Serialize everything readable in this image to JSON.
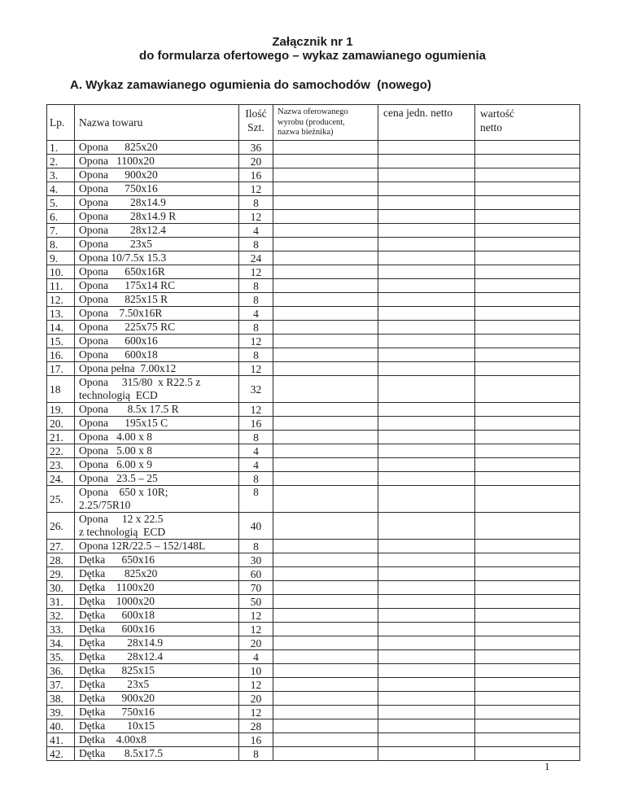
{
  "page": {
    "title": "Załącznik nr 1\ndo formularza ofertowego – wykaz zamawianego ogumienia",
    "section_heading": "A. Wykaz zamawianego ogumienia do samochodów  (nowego)",
    "page_number": "1"
  },
  "table": {
    "headers": {
      "lp": "Lp.",
      "name": "Nazwa towaru",
      "qty": "Ilość\nSzt.",
      "offered": "Nazwa oferowanego\nwyrobu (producent,\nnazwa bieżnika)",
      "unit_price": "cena jedn. netto",
      "value": "wartość\nnetto"
    },
    "rows": [
      {
        "lp": "1.",
        "name": "Opona      825x20",
        "qty": "36"
      },
      {
        "lp": "2.",
        "name": "Opona   1100x20",
        "qty": "20"
      },
      {
        "lp": "3.",
        "name": "Opona      900x20",
        "qty": "16"
      },
      {
        "lp": "4.",
        "name": "Opona      750x16",
        "qty": "12"
      },
      {
        "lp": "5.",
        "name": "Opona        28x14.9",
        "qty": "8"
      },
      {
        "lp": "6.",
        "name": "Opona        28x14.9 R",
        "qty": "12"
      },
      {
        "lp": "7.",
        "name": "Opona        28x12.4",
        "qty": "4"
      },
      {
        "lp": "8.",
        "name": "Opona        23x5",
        "qty": "8"
      },
      {
        "lp": "9.",
        "name": "Opona 10/7.5x 15.3",
        "qty": "24"
      },
      {
        "lp": "10.",
        "name": "Opona      650x16R",
        "qty": "12"
      },
      {
        "lp": "11.",
        "name": "Opona      175x14 RC",
        "qty": "8"
      },
      {
        "lp": "12.",
        "name": "Opona      825x15 R",
        "qty": "8"
      },
      {
        "lp": "13.",
        "name": "Opona    7.50x16R",
        "qty": "4"
      },
      {
        "lp": "14.",
        "name": "Opona      225x75 RC",
        "qty": "8"
      },
      {
        "lp": "15.",
        "name": "Opona      600x16",
        "qty": "12"
      },
      {
        "lp": "16.",
        "name": "Opona      600x18",
        "qty": "8"
      },
      {
        "lp": "17.",
        "name": "Opona pełna  7.00x12",
        "qty": "12"
      },
      {
        "lp": "18",
        "name": "Opona     315/80  x R22.5 z\ntechnologią  ECD",
        "qty": "32"
      },
      {
        "lp": "19.",
        "name": "Opona       8.5x 17.5 R",
        "qty": "12"
      },
      {
        "lp": "20.",
        "name": "Opona      195x15 C",
        "qty": "16"
      },
      {
        "lp": "21.",
        "name": "Opona   4.00 x 8",
        "qty": "8"
      },
      {
        "lp": "22.",
        "name": "Opona   5.00 x 8",
        "qty": "4"
      },
      {
        "lp": "23.",
        "name": "Opona   6.00 x 9",
        "qty": "4"
      },
      {
        "lp": "24.",
        "name": "Opona   23.5 – 25",
        "qty": "8"
      },
      {
        "lp": "25.",
        "name": "Opona    650 x 10R;\n2.25/75R10",
        "qty": "8",
        "qty_align": "top"
      },
      {
        "lp": "26.",
        "name": "Opona     12 x 22.5\nz technologią  ECD",
        "qty": "40"
      },
      {
        "lp": "27.",
        "name": "Opona 12R/22.5 – 152/148L",
        "qty": "8"
      },
      {
        "lp": "28.",
        "name": "Dętka      650x16",
        "qty": "30"
      },
      {
        "lp": "29.",
        "name": "Dętka       825x20",
        "qty": "60"
      },
      {
        "lp": "30.",
        "name": "Dętka    1100x20",
        "qty": "70"
      },
      {
        "lp": "31.",
        "name": "Dętka    1000x20",
        "qty": "50"
      },
      {
        "lp": "32.",
        "name": "Dętka      600x18",
        "qty": "12"
      },
      {
        "lp": "33.",
        "name": "Dętka      600x16",
        "qty": "12"
      },
      {
        "lp": "34.",
        "name": "Dętka        28x14.9",
        "qty": "20"
      },
      {
        "lp": "35.",
        "name": "Dętka        28x12.4",
        "qty": "4"
      },
      {
        "lp": "36.",
        "name": "Dętka      825x15",
        "qty": "10"
      },
      {
        "lp": "37.",
        "name": "Dętka        23x5",
        "qty": "12"
      },
      {
        "lp": "38.",
        "name": "Dętka      900x20",
        "qty": "20"
      },
      {
        "lp": "39.",
        "name": "Dętka      750x16",
        "qty": "12"
      },
      {
        "lp": "40.",
        "name": "Dętka        10x15",
        "qty": "28"
      },
      {
        "lp": "41.",
        "name": "Dętka    4.00x8",
        "qty": "16"
      },
      {
        "lp": "42.",
        "name": "Dętka       8.5x17.5",
        "qty": "8"
      }
    ]
  }
}
